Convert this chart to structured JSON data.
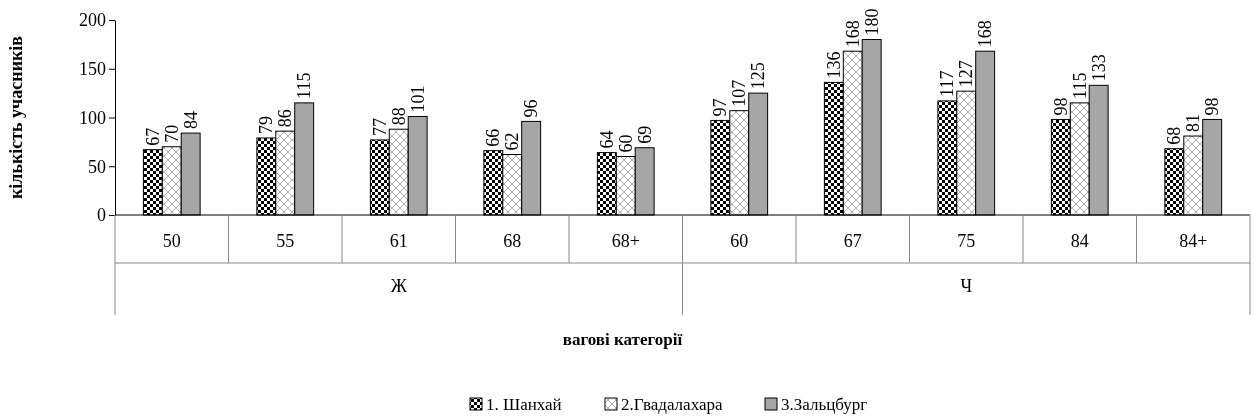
{
  "chart_data": {
    "type": "bar",
    "xlabel": "вагові категорії",
    "ylabel": "кількість учасників",
    "categories": [
      "50",
      "55",
      "61",
      "68",
      "68+",
      "60",
      "67",
      "75",
      "84",
      "84+"
    ],
    "series": [
      {
        "name": "1. Шанхай",
        "color": "#000000",
        "values": [
          67,
          79,
          77,
          66,
          64,
          97,
          136,
          117,
          98,
          68
        ]
      },
      {
        "name": "2.Гвадалахара",
        "color": "#000000",
        "values": [
          70,
          86,
          88,
          62,
          60,
          107,
          168,
          127,
          115,
          81
        ]
      },
      {
        "name": "3.Зальцбург",
        "color": "#a6a6a6",
        "values": [
          84,
          115,
          101,
          96,
          69,
          125,
          180,
          168,
          133,
          98
        ]
      }
    ],
    "annotations": [
      "Ж",
      "Ч"
    ],
    "ylim": [
      0,
      200
    ],
    "yticks": [
      0,
      50,
      100,
      150,
      200
    ],
    "grid": false,
    "legend": "bottom",
    "data_labels": true
  }
}
